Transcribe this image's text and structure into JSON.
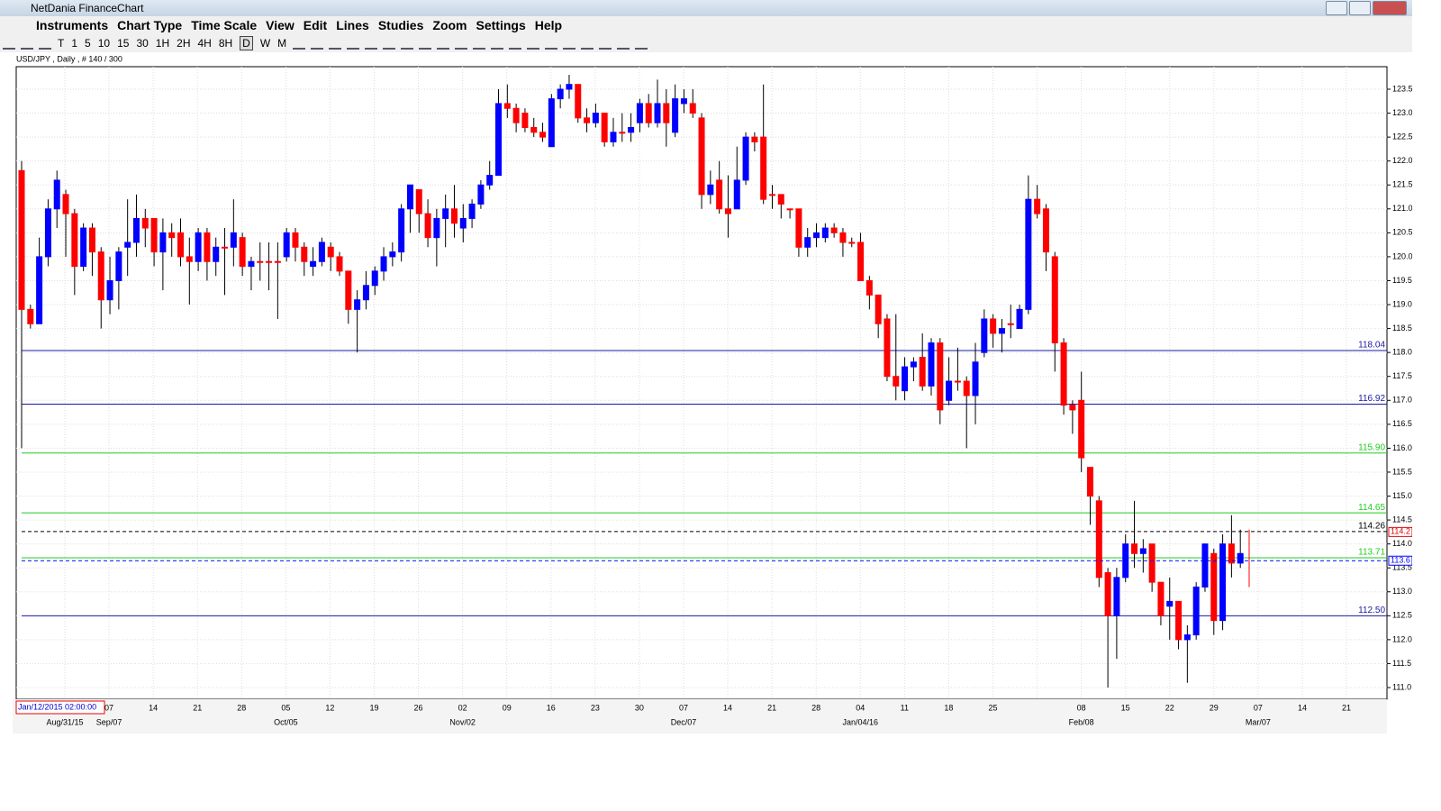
{
  "window": {
    "title": "NetDania FinanceChart"
  },
  "menu": [
    "Instruments",
    "Chart Type",
    "Time Scale",
    "View",
    "Edit",
    "Lines",
    "Studies",
    "Zoom",
    "Settings",
    "Help"
  ],
  "toolbar": [
    "T",
    "1",
    "5",
    "10",
    "15",
    "30",
    "1H",
    "2H",
    "4H",
    "8H",
    "D",
    "W",
    "M"
  ],
  "chart_data": {
    "type": "candlestick",
    "title": "USD/JPY , Daily , # 140 / 300",
    "date_box": "Jan/12/2015 02:00:00",
    "up_color": "#0000ff",
    "down_color": "#ff0000",
    "ylim": [
      111,
      123.5
    ],
    "yticks": [
      {
        "value": 111,
        "label": "111.0"
      },
      {
        "value": 111.5,
        "label": "111.5"
      },
      {
        "value": 112,
        "label": "112.0"
      },
      {
        "value": 112.5,
        "label": "112.5"
      },
      {
        "value": 113,
        "label": "113.0"
      },
      {
        "value": 113.5,
        "label": "113.5"
      },
      {
        "value": 114,
        "label": "114.0"
      },
      {
        "value": 114.5,
        "label": "114.5"
      },
      {
        "value": 115,
        "label": "115.0"
      },
      {
        "value": 115.5,
        "label": "115.5"
      },
      {
        "value": 116,
        "label": "116.0"
      },
      {
        "value": 116.5,
        "label": "116.5"
      },
      {
        "value": 117,
        "label": "117.0"
      },
      {
        "value": 117.5,
        "label": "117.5"
      },
      {
        "value": 118,
        "label": "118.0"
      },
      {
        "value": 118.5,
        "label": "118.5"
      },
      {
        "value": 119,
        "label": "119.0"
      },
      {
        "value": 119.5,
        "label": "119.5"
      },
      {
        "value": 120,
        "label": "120.0"
      },
      {
        "value": 120.5,
        "label": "120.5"
      },
      {
        "value": 121,
        "label": "121.0"
      },
      {
        "value": 121.5,
        "label": "121.5"
      },
      {
        "value": 122,
        "label": "122.0"
      },
      {
        "value": 122.5,
        "label": "122.5"
      },
      {
        "value": 123,
        "label": "123.0"
      },
      {
        "value": 123.5,
        "label": "123.5"
      }
    ],
    "week_labels": [
      null,
      "07",
      "14",
      "21",
      "28",
      "05",
      "12",
      "19",
      "26",
      "02",
      "09",
      "16",
      "23",
      "30",
      "07",
      "14",
      "21",
      "28",
      "04",
      "11",
      "18",
      "25",
      null,
      "08",
      "15",
      "22",
      "29",
      "07",
      "14",
      "21"
    ],
    "month_labels": [
      "Aug/31/15",
      "Sep/07",
      null,
      null,
      null,
      "Oct/05",
      null,
      null,
      null,
      "Nov/02",
      null,
      null,
      null,
      null,
      "Dec/07",
      null,
      null,
      null,
      "Jan/04/16",
      null,
      null,
      null,
      null,
      "Feb/08",
      null,
      null,
      null,
      "Mar/07",
      null,
      null
    ],
    "lines": [
      {
        "value": 118.04,
        "label": "118.04",
        "color": "#1a1aa0",
        "dashed": false
      },
      {
        "value": 116.92,
        "label": "116.92",
        "color": "#1a1aa0",
        "dashed": false
      },
      {
        "value": 115.9,
        "label": "115.90",
        "color": "#22cc22",
        "dashed": false
      },
      {
        "value": 114.65,
        "label": "114.65",
        "color": "#22cc22",
        "dashed": false
      },
      {
        "value": 114.26,
        "label": "114.26",
        "color": "#000000",
        "dashed": true
      },
      {
        "value": 113.71,
        "label": "113.71",
        "color": "#22cc22",
        "dashed": false
      },
      {
        "value": 112.5,
        "label": "112.50",
        "color": "#1a1aa0",
        "dashed": false
      }
    ],
    "price_markers": [
      {
        "value": 114.25,
        "label": "114.2",
        "color": "#dd0000"
      },
      {
        "value": 113.65,
        "label": "113.6",
        "color": "#0000ff"
      }
    ],
    "candles": [
      [
        121.8,
        122,
        116,
        118.9
      ],
      [
        118.9,
        119,
        118.5,
        118.6
      ],
      [
        118.6,
        120.4,
        118.6,
        120
      ],
      [
        120,
        121.2,
        119.8,
        121
      ],
      [
        121,
        121.8,
        120.6,
        121.6
      ],
      [
        121.3,
        121.4,
        120,
        120.9
      ],
      [
        120.9,
        121,
        119.2,
        119.8
      ],
      [
        119.8,
        120.7,
        119.7,
        120.6
      ],
      [
        120.6,
        120.7,
        119.6,
        120.1
      ],
      [
        120.1,
        120.2,
        118.5,
        119.1
      ],
      [
        119.1,
        120,
        118.8,
        119.5
      ],
      [
        119.5,
        120.2,
        118.9,
        120.1
      ],
      [
        120.2,
        121.2,
        119.6,
        120.3
      ],
      [
        120.3,
        121.3,
        120,
        120.8
      ],
      [
        120.8,
        121,
        120.2,
        120.6
      ],
      [
        120.8,
        120.8,
        119.8,
        120.1
      ],
      [
        120.1,
        120.8,
        119.3,
        120.5
      ],
      [
        120.5,
        120.7,
        120,
        120.4
      ],
      [
        120.5,
        120.8,
        119.8,
        120
      ],
      [
        120,
        120.4,
        119,
        119.9
      ],
      [
        119.9,
        120.6,
        119.7,
        120.5
      ],
      [
        120.5,
        120.6,
        119.5,
        119.9
      ],
      [
        119.9,
        120.4,
        119.6,
        120.2
      ],
      [
        120.2,
        120.6,
        119.2,
        120.2
      ],
      [
        120.2,
        121.2,
        119.8,
        120.5
      ],
      [
        120.4,
        120.5,
        119.6,
        119.8
      ],
      [
        119.8,
        120,
        119.3,
        119.9
      ],
      [
        119.9,
        120.3,
        119.5,
        119.9
      ],
      [
        119.9,
        120.3,
        119.3,
        119.9
      ],
      [
        119.9,
        120.3,
        118.7,
        119.9
      ],
      [
        120,
        120.6,
        119.9,
        120.5
      ],
      [
        120.5,
        120.6,
        119.9,
        120.2
      ],
      [
        120.2,
        120.3,
        119.6,
        119.9
      ],
      [
        119.8,
        120.2,
        119.6,
        119.9
      ],
      [
        119.9,
        120.4,
        119.8,
        120.3
      ],
      [
        120.2,
        120.3,
        119.7,
        120
      ],
      [
        120,
        120.1,
        119.6,
        119.7
      ],
      [
        119.7,
        119.7,
        118.6,
        118.9
      ],
      [
        118.9,
        119.3,
        118,
        119.1
      ],
      [
        119.1,
        119.7,
        118.9,
        119.4
      ],
      [
        119.4,
        119.8,
        119.2,
        119.7
      ],
      [
        119.7,
        120.2,
        119.5,
        120
      ],
      [
        120,
        120.3,
        119.8,
        120.1
      ],
      [
        120.1,
        121.1,
        119.9,
        121
      ],
      [
        121,
        121.5,
        120.5,
        121.5
      ],
      [
        121.4,
        121.4,
        120.5,
        120.9
      ],
      [
        120.9,
        121.2,
        120.2,
        120.4
      ],
      [
        120.4,
        121,
        119.8,
        120.8
      ],
      [
        120.8,
        121.3,
        120.2,
        121
      ],
      [
        121,
        121.5,
        120.4,
        120.7
      ],
      [
        120.6,
        121.1,
        120.3,
        120.8
      ],
      [
        120.8,
        121.2,
        120.6,
        121.1
      ],
      [
        121.1,
        121.6,
        121,
        121.5
      ],
      [
        121.5,
        122,
        121.4,
        121.7
      ],
      [
        121.7,
        123.5,
        121.7,
        123.2
      ],
      [
        123.2,
        123.6,
        122.9,
        123.1
      ],
      [
        123.1,
        123.2,
        122.6,
        122.8
      ],
      [
        123,
        123.1,
        122.6,
        122.7
      ],
      [
        122.7,
        122.9,
        122.5,
        122.6
      ],
      [
        122.6,
        122.8,
        122.4,
        122.5
      ],
      [
        122.3,
        123.4,
        122.3,
        123.3
      ],
      [
        123.3,
        123.6,
        123.1,
        123.5
      ],
      [
        123.5,
        123.8,
        123.3,
        123.6
      ],
      [
        123.6,
        123.6,
        122.8,
        122.9
      ],
      [
        122.9,
        123.1,
        122.6,
        122.8
      ],
      [
        122.8,
        123.2,
        122.7,
        123
      ],
      [
        123,
        123,
        122.3,
        122.4
      ],
      [
        122.4,
        122.9,
        122.3,
        122.6
      ],
      [
        122.6,
        123,
        122.4,
        122.6
      ],
      [
        122.6,
        123,
        122.4,
        122.7
      ],
      [
        122.8,
        123.3,
        122.6,
        123.2
      ],
      [
        123.2,
        123.4,
        122.7,
        122.8
      ],
      [
        122.8,
        123.7,
        122.7,
        123.2
      ],
      [
        123.2,
        123.5,
        122.3,
        122.8
      ],
      [
        122.6,
        123.6,
        122.5,
        123.3
      ],
      [
        123.2,
        123.5,
        123,
        123.3
      ],
      [
        123.2,
        123.5,
        122.9,
        123
      ],
      [
        122.9,
        123,
        121,
        121.3
      ],
      [
        121.3,
        121.8,
        121.1,
        121.5
      ],
      [
        121.6,
        122,
        120.9,
        121
      ],
      [
        121,
        121.7,
        120.4,
        120.9
      ],
      [
        121,
        122.3,
        121,
        121.6
      ],
      [
        121.6,
        122.6,
        121.5,
        122.5
      ],
      [
        122.5,
        122.6,
        122.2,
        122.4
      ],
      [
        122.5,
        123.6,
        121.1,
        121.2
      ],
      [
        121.3,
        121.5,
        121,
        121.3
      ],
      [
        121.3,
        121.3,
        120.8,
        121.1
      ],
      [
        121,
        121,
        120.8,
        121
      ],
      [
        121,
        121,
        120,
        120.2
      ],
      [
        120.2,
        120.6,
        120,
        120.4
      ],
      [
        120.4,
        120.7,
        120.2,
        120.5
      ],
      [
        120.4,
        120.7,
        120.3,
        120.6
      ],
      [
        120.6,
        120.7,
        120.4,
        120.5
      ],
      [
        120.5,
        120.6,
        120,
        120.3
      ],
      [
        120.3,
        120.4,
        120.2,
        120.3
      ],
      [
        120.3,
        120.5,
        119.5,
        119.5
      ],
      [
        119.5,
        119.6,
        118.9,
        119.2
      ],
      [
        119.2,
        119.2,
        118.3,
        118.6
      ],
      [
        118.7,
        118.8,
        117.4,
        117.5
      ],
      [
        117.5,
        118.8,
        117,
        117.3
      ],
      [
        117.2,
        117.9,
        117,
        117.7
      ],
      [
        117.7,
        117.9,
        117.4,
        117.8
      ],
      [
        117.9,
        118.4,
        117.2,
        117.3
      ],
      [
        117.3,
        118.3,
        117.1,
        118.2
      ],
      [
        118.2,
        118.3,
        116.5,
        116.8
      ],
      [
        117,
        117.9,
        116.9,
        117.4
      ],
      [
        117.4,
        118.1,
        117.2,
        117.4
      ],
      [
        117.4,
        117.5,
        116,
        117.1
      ],
      [
        117.1,
        118.2,
        116.5,
        117.8
      ],
      [
        118,
        118.9,
        117.9,
        118.7
      ],
      [
        118.7,
        118.8,
        118.1,
        118.4
      ],
      [
        118.4,
        118.7,
        118,
        118.5
      ],
      [
        118.6,
        119,
        118.3,
        118.6
      ],
      [
        118.5,
        119,
        118.5,
        118.9
      ],
      [
        118.9,
        121.7,
        118.8,
        121.2
      ],
      [
        121.2,
        121.5,
        120.8,
        120.9
      ],
      [
        121,
        121.1,
        119.7,
        120.1
      ],
      [
        120,
        120.1,
        117.6,
        118.2
      ],
      [
        118.2,
        118.3,
        116.7,
        116.9
      ],
      [
        116.9,
        117,
        116.3,
        116.8
      ],
      [
        117,
        117.6,
        115.5,
        115.8
      ],
      [
        115.6,
        115.6,
        114.4,
        115
      ],
      [
        114.9,
        115,
        113.1,
        113.3
      ],
      [
        113.4,
        113.5,
        111,
        112.5
      ],
      [
        112.5,
        113.5,
        111.6,
        113.3
      ],
      [
        113.3,
        114.2,
        113.2,
        114
      ],
      [
        114,
        114.9,
        113.5,
        113.8
      ],
      [
        113.8,
        114.1,
        113.4,
        113.9
      ],
      [
        114,
        114,
        113,
        113.2
      ],
      [
        113.2,
        113.2,
        112.3,
        112.5
      ],
      [
        112.7,
        113.3,
        112,
        112.8
      ],
      [
        112.8,
        112.8,
        111.8,
        112
      ],
      [
        112,
        112.3,
        111.1,
        112.1
      ],
      [
        112.1,
        113.2,
        112,
        113.1
      ],
      [
        113.1,
        114,
        113,
        114
      ],
      [
        113.8,
        113.9,
        112.1,
        112.4
      ],
      [
        112.4,
        114.2,
        112.2,
        114
      ],
      [
        114,
        114.6,
        113.3,
        113.6
      ],
      [
        113.6,
        114.3,
        113.5,
        113.8
      ],
      [
        114.3,
        114.3,
        113.1,
        113.6
      ]
    ]
  }
}
